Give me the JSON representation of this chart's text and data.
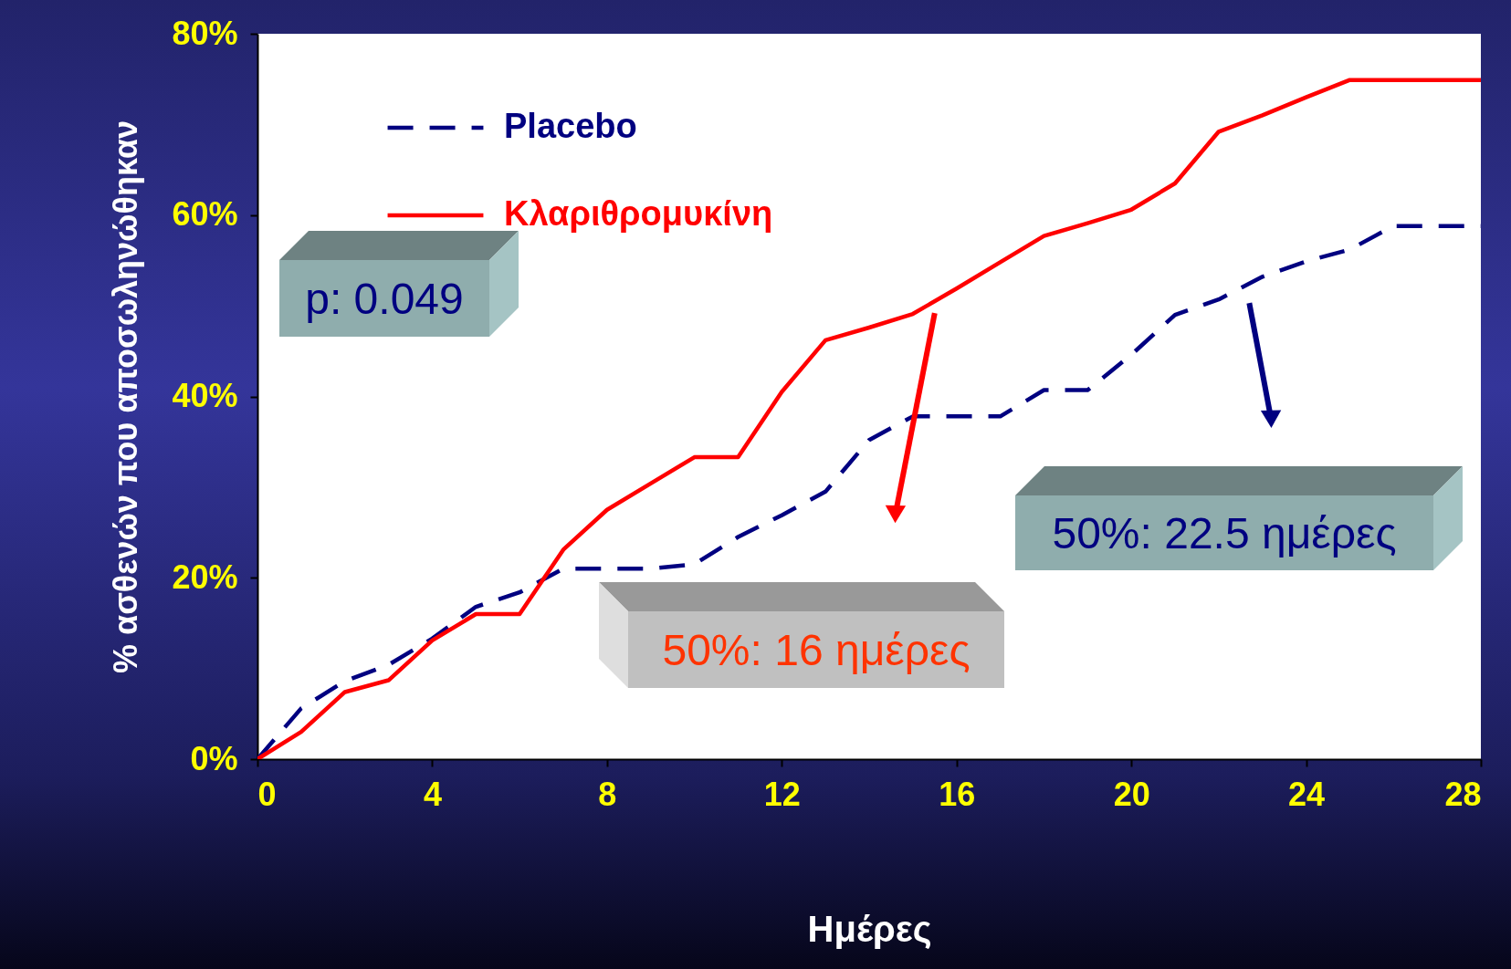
{
  "chart_data": {
    "type": "line",
    "xlabel": "Ημέρες",
    "ylabel": "%  ασθενών που αποσωληνώθηκαν",
    "x": [
      0,
      1,
      2,
      3,
      4,
      5,
      6,
      7,
      8,
      9,
      10,
      11,
      12,
      13,
      14,
      15,
      16,
      17,
      18,
      19,
      20,
      21,
      22,
      23,
      24,
      25,
      26,
      27,
      28
    ],
    "series": [
      {
        "name": "Placebo",
        "color": "#000080",
        "line_style": "dashed",
        "values": [
          0,
          5.6,
          8.6,
          10.4,
          13.3,
          16.8,
          18.4,
          21,
          21,
          21,
          21.5,
          24.5,
          26.9,
          29.5,
          35.2,
          37.8,
          37.8,
          37.8,
          40.7,
          40.7,
          44.6,
          49,
          50.7,
          53.2,
          54.9,
          56.2,
          58.8,
          58.8,
          58.8
        ]
      },
      {
        "name": "Κλαριθρομυκίνη",
        "color": "#ff0000",
        "line_style": "solid",
        "values": [
          0,
          3,
          7.4,
          8.7,
          13.1,
          16,
          16,
          23.1,
          27.5,
          30.4,
          33.3,
          33.3,
          40.5,
          46.2,
          47.6,
          49.1,
          51.9,
          54.8,
          57.7,
          59.1,
          60.6,
          63.5,
          69.2,
          71,
          73,
          74.9,
          74.9,
          74.9,
          74.9
        ]
      }
    ],
    "xlim": [
      0,
      28
    ],
    "xticks": [
      0,
      4,
      8,
      12,
      16,
      20,
      24,
      28
    ],
    "ylim": [
      0,
      80
    ],
    "yticks": [
      {
        "value": 0,
        "label": "0%"
      },
      {
        "value": 20,
        "label": "20%"
      },
      {
        "value": 40,
        "label": "40%"
      },
      {
        "value": 60,
        "label": "60%"
      },
      {
        "value": 80,
        "label": "80%"
      }
    ],
    "legend": "top left",
    "grid": false,
    "annotations": [
      "p: 0.049",
      "50%: 16 ημέρες",
      "50%: 22.5 ημέρες"
    ]
  }
}
